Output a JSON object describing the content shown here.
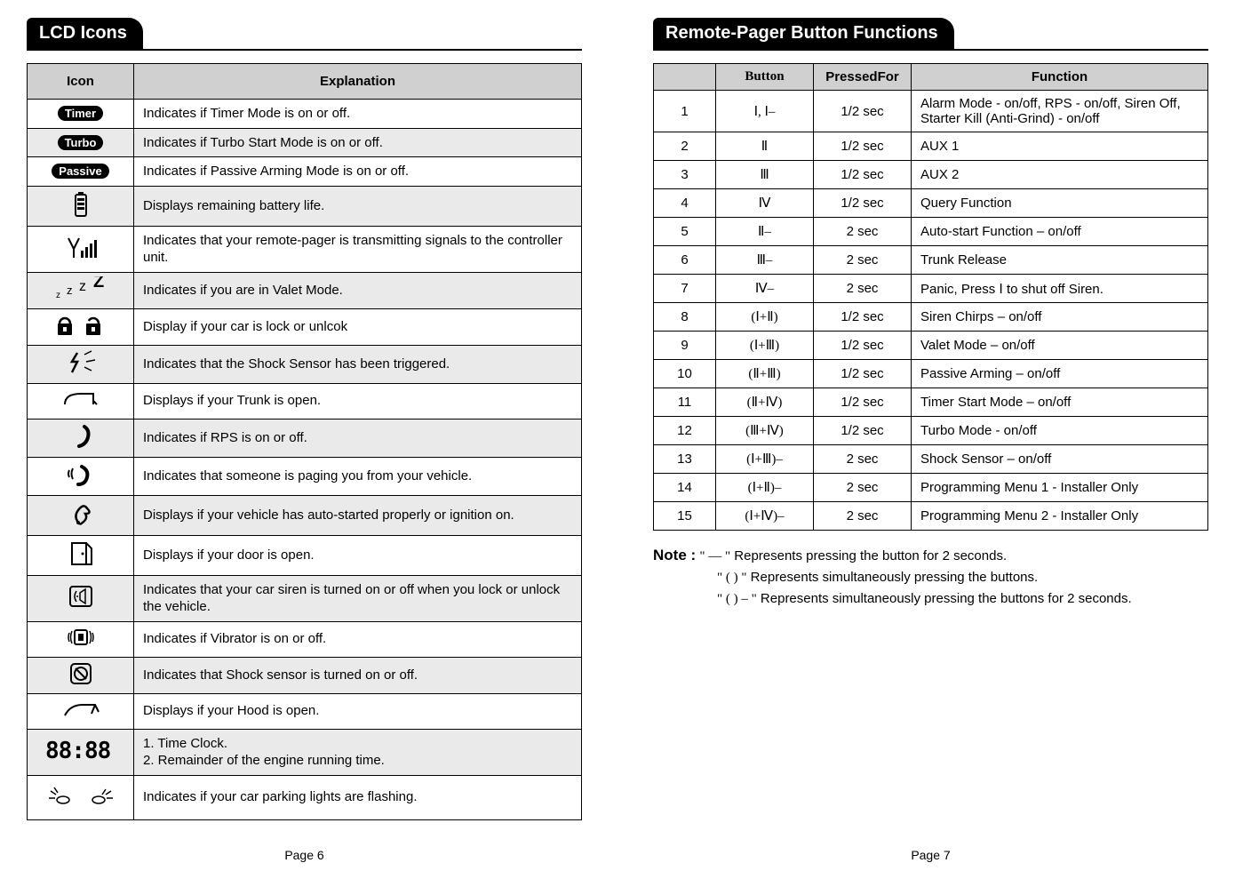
{
  "left": {
    "title": "LCD  Icons",
    "columns": [
      "Icon",
      "Explanation"
    ],
    "rows": [
      {
        "icon": "timer-pill",
        "label": "Timer",
        "text": "Indicates if Timer Mode is on or off.",
        "alt": false,
        "short": true
      },
      {
        "icon": "turbo-pill",
        "label": "Turbo",
        "text": "Indicates if Turbo Start Mode is on or off.",
        "alt": true,
        "short": true
      },
      {
        "icon": "passive-pill",
        "label": "Passive",
        "text": "Indicates if Passive Arming Mode is on or off.",
        "alt": false,
        "short": true
      },
      {
        "icon": "battery",
        "label": "",
        "text": "Displays remaining battery life.",
        "alt": true
      },
      {
        "icon": "antenna",
        "label": "",
        "text": "Indicates that your remote-pager is transmitting signals to the controller unit.",
        "alt": false
      },
      {
        "icon": "valet",
        "label": "",
        "text": "Indicates if you are in Valet Mode.",
        "alt": true
      },
      {
        "icon": "lock",
        "label": "",
        "text": "Display if your car is lock or unlcok",
        "alt": false
      },
      {
        "icon": "shock",
        "label": "",
        "text": "Indicates that the Shock Sensor has been triggered.",
        "alt": true
      },
      {
        "icon": "trunk",
        "label": "",
        "text": "Displays if your Trunk is open.",
        "alt": false
      },
      {
        "icon": "rps",
        "label": "",
        "text": "Indicates if RPS is on or off.",
        "alt": true
      },
      {
        "icon": "paging",
        "label": "",
        "text": "Indicates that someone is paging you from your vehicle.",
        "alt": false
      },
      {
        "icon": "autostart",
        "label": "",
        "text": "Displays if your vehicle has auto-started properly or ignition on.",
        "alt": true
      },
      {
        "icon": "door",
        "label": "",
        "text": "Displays if your door is open.",
        "alt": false
      },
      {
        "icon": "siren",
        "label": "",
        "text": "Indicates that your car siren is turned on or off when you lock or unlock the vehicle.",
        "alt": true
      },
      {
        "icon": "vibrator",
        "label": "",
        "text": "Indicates if Vibrator is on or off.",
        "alt": false
      },
      {
        "icon": "shocksensor",
        "label": "",
        "text": "Indicates that Shock sensor is turned on or off.",
        "alt": true
      },
      {
        "icon": "hood",
        "label": "",
        "text": "Displays if your Hood is open.",
        "alt": false
      },
      {
        "icon": "clock",
        "label": "",
        "text": "1. Time Clock.\n2. Remainder of the engine running time.",
        "alt": true,
        "tall": true
      },
      {
        "icon": "parkinglights",
        "label": "",
        "text": "Indicates if your car parking lights are flashing.",
        "alt": false,
        "tall": true
      }
    ],
    "pageNum": "Page 6"
  },
  "right": {
    "title": "Remote-Pager Button Functions",
    "columns": [
      "",
      "Button",
      "PressedFor",
      "Function"
    ],
    "rows": [
      {
        "n": "1",
        "btn": "Ⅰ, Ⅰ–",
        "press": "1/2 sec",
        "func": "Alarm Mode - on/off, RPS - on/off, Siren Off, Starter Kill (Anti-Grind) - on/off"
      },
      {
        "n": "2",
        "btn": "Ⅱ",
        "press": "1/2 sec",
        "func": "AUX 1"
      },
      {
        "n": "3",
        "btn": "Ⅲ",
        "press": "1/2 sec",
        "func": "AUX 2"
      },
      {
        "n": "4",
        "btn": "Ⅳ",
        "press": "1/2 sec",
        "func": "Query Function"
      },
      {
        "n": "5",
        "btn": "Ⅱ–",
        "press": "2 sec",
        "func": "Auto-start Function – on/off"
      },
      {
        "n": "6",
        "btn": "Ⅲ–",
        "press": "2 sec",
        "func": "Trunk Release"
      },
      {
        "n": "7",
        "btn": "Ⅳ–",
        "press": "2 sec",
        "func": "Panic, Press Ⅰ to shut off Siren."
      },
      {
        "n": "8",
        "btn": "(Ⅰ+Ⅱ)",
        "press": "1/2 sec",
        "func": "Siren Chirps –  on/off"
      },
      {
        "n": "9",
        "btn": "(Ⅰ+Ⅲ)",
        "press": "1/2 sec",
        "func": "Valet Mode – on/off"
      },
      {
        "n": "10",
        "btn": "(Ⅱ+Ⅲ)",
        "press": "1/2 sec",
        "func": "Passive Arming – on/off"
      },
      {
        "n": "11",
        "btn": "(Ⅱ+Ⅳ)",
        "press": "1/2 sec",
        "func": "Timer Start Mode –  on/off"
      },
      {
        "n": "12",
        "btn": "(Ⅲ+Ⅳ)",
        "press": "1/2 sec",
        "func": "Turbo Mode - on/off"
      },
      {
        "n": "13",
        "btn": "(Ⅰ+Ⅲ)–",
        "press": "2 sec",
        "func": "Shock Sensor –  on/off"
      },
      {
        "n": "14",
        "btn": "(Ⅰ+Ⅱ)–",
        "press": "2 sec",
        "func": "Programming Menu 1 - Installer Only"
      },
      {
        "n": "15",
        "btn": "(Ⅰ+Ⅳ)–",
        "press": "2 sec",
        "func": "Programming Menu 2 - Installer Only"
      }
    ],
    "note": {
      "label": "Note :",
      "lines": [
        {
          "sym": "\" — \"",
          "text": " Represents pressing the button for 2 seconds."
        },
        {
          "sym": "\" (    ) \"",
          "text": "Represents simultaneously pressing the buttons."
        },
        {
          "sym": "\" (    ) – \"",
          "text": "Represents simultaneously pressing the buttons for 2 seconds."
        }
      ]
    },
    "pageNum": "Page 7"
  },
  "colors": {
    "header_bg": "#d0d0d0",
    "alt_row_bg": "#eaeaea",
    "border": "#000000",
    "pill_bg": "#000000",
    "pill_fg": "#ffffff"
  }
}
